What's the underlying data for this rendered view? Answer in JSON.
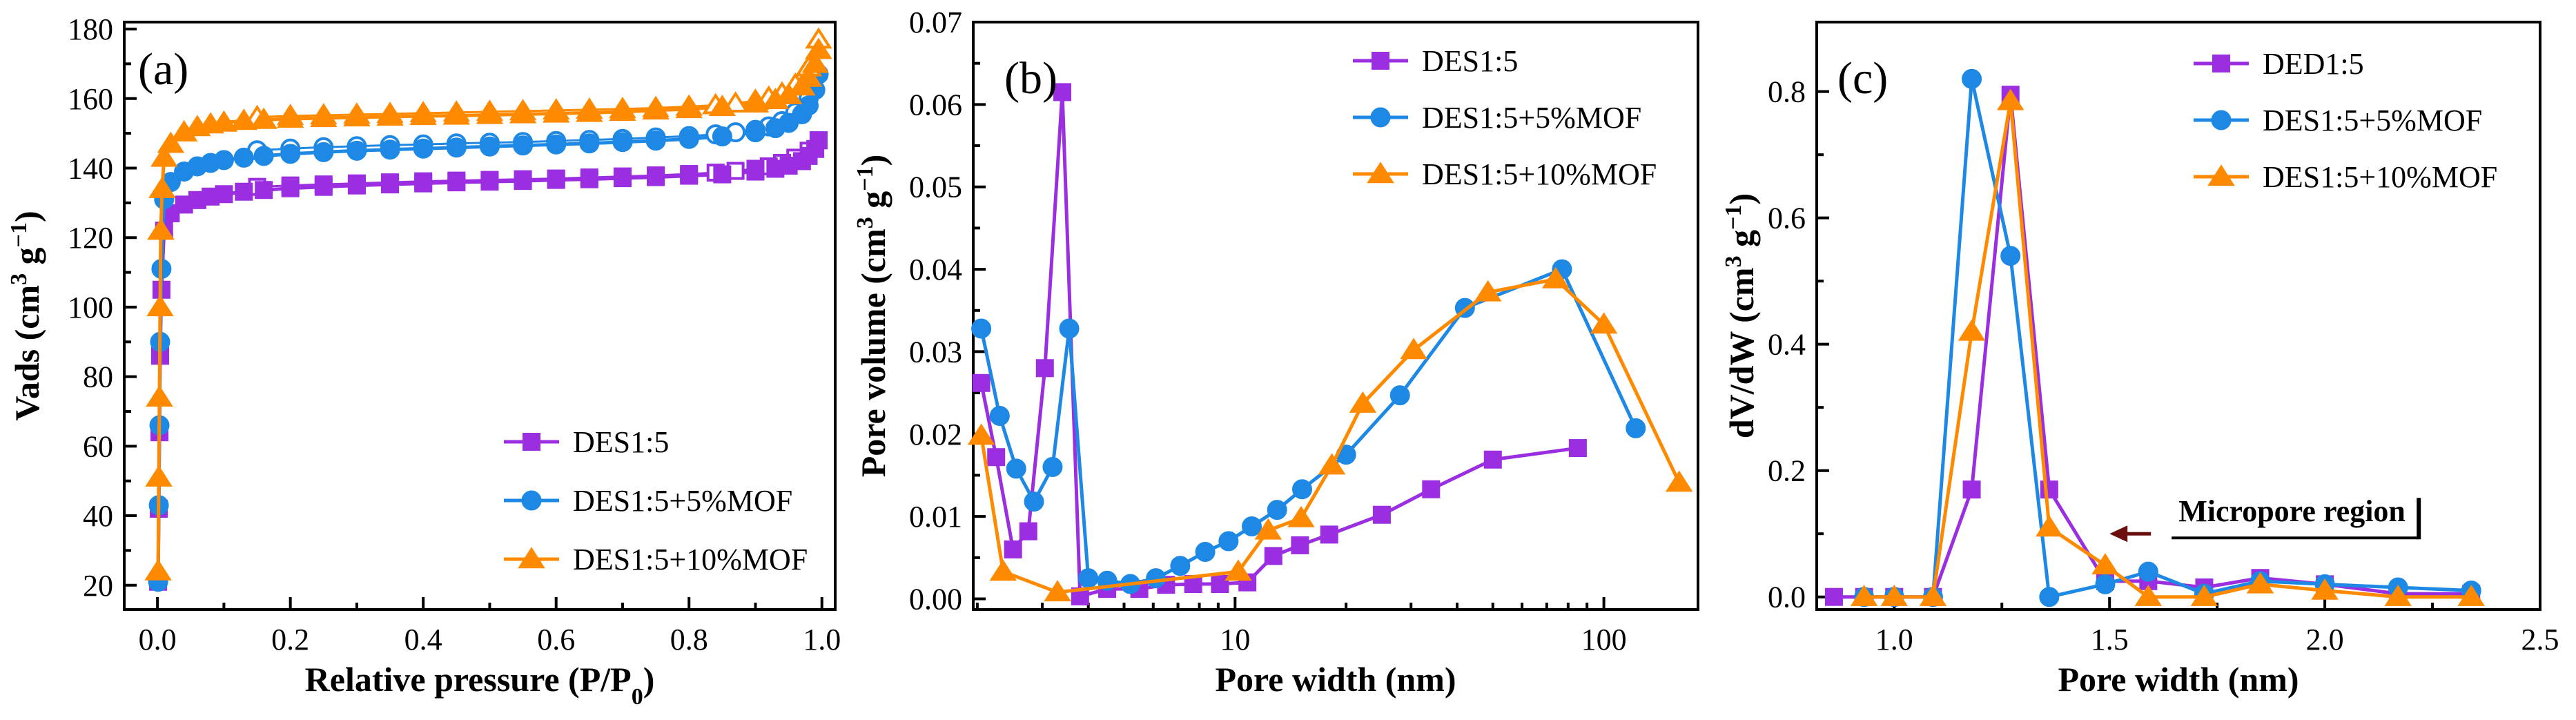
{
  "colors": {
    "purple": "#9a2ee0",
    "blue": "#1e88e5",
    "orange": "#ff8a00"
  },
  "chart_data": [
    {
      "type": "scatter",
      "panel_label": "(a)",
      "xlabel": "Relative pressure (P/P",
      "xlabel_sub": "0",
      "xlabel_end": ")",
      "ylabel": "Vads (cm",
      "ylabel_sup": "3",
      "ylabel_mid": " g",
      "ylabel_sup2": "−1",
      "ylabel_end": ")",
      "xlim": [
        -0.05,
        1.02
      ],
      "ylim": [
        13,
        182
      ],
      "x_ticks": [
        0.0,
        0.2,
        0.4,
        0.6,
        0.8,
        1.0
      ],
      "x_tick_labels": [
        "0.0",
        "0.2",
        "0.4",
        "0.6",
        "0.8",
        "1.0"
      ],
      "y_ticks": [
        20,
        40,
        60,
        80,
        100,
        120,
        140,
        160,
        180
      ],
      "y_tick_labels": [
        "20",
        "40",
        "60",
        "80",
        "100",
        "120",
        "140",
        "160",
        "180"
      ],
      "legend_position": "bottom-right",
      "series": [
        {
          "name": "DES1:5",
          "color": "purple",
          "marker": "square",
          "adsorption": {
            "x": [
              0.001,
              0.002,
              0.003,
              0.004,
              0.006,
              0.01,
              0.02,
              0.04,
              0.06,
              0.08,
              0.1,
              0.13,
              0.16,
              0.2,
              0.25,
              0.3,
              0.35,
              0.4,
              0.45,
              0.5,
              0.55,
              0.6,
              0.65,
              0.7,
              0.75,
              0.8,
              0.85,
              0.9,
              0.93,
              0.95,
              0.97,
              0.98,
              0.99,
              0.995
            ],
            "y": [
              21,
              42,
              64,
              86,
              105,
              122,
              127,
              129.5,
              130.8,
              131.8,
              132.5,
              133.2,
              133.7,
              134.2,
              134.6,
              135,
              135.3,
              135.6,
              135.9,
              136.1,
              136.3,
              136.6,
              136.8,
              137.1,
              137.4,
              137.8,
              138.2,
              139,
              139.8,
              140.7,
              142,
              143.5,
              145.5,
              148
            ]
          },
          "desorption": {
            "x": [
              0.995,
              0.98,
              0.96,
              0.94,
              0.92,
              0.9,
              0.87,
              0.84,
              0.8,
              0.75,
              0.7,
              0.65,
              0.6,
              0.55,
              0.5,
              0.45,
              0.4,
              0.35,
              0.3,
              0.25,
              0.2,
              0.15
            ],
            "y": [
              148,
              145,
              143,
              141.5,
              140.5,
              139.8,
              139.2,
              138.7,
              138.3,
              137.9,
              137.6,
              137.3,
              137,
              136.8,
              136.6,
              136.4,
              136.2,
              135.9,
              135.6,
              135.3,
              135,
              134.6
            ]
          }
        },
        {
          "name": "DES1:5+5%MOF",
          "color": "blue",
          "marker": "circle",
          "adsorption": {
            "x": [
              0.001,
              0.002,
              0.003,
              0.004,
              0.006,
              0.01,
              0.02,
              0.04,
              0.06,
              0.08,
              0.1,
              0.13,
              0.16,
              0.2,
              0.25,
              0.3,
              0.35,
              0.4,
              0.45,
              0.5,
              0.55,
              0.6,
              0.65,
              0.7,
              0.75,
              0.8,
              0.85,
              0.9,
              0.93,
              0.95,
              0.97,
              0.98,
              0.99,
              0.995
            ],
            "y": [
              21,
              43,
              66,
              90,
              111,
              131,
              136,
              139,
              140.5,
              141.5,
              142.3,
              143,
              143.5,
              144.1,
              144.6,
              145,
              145.3,
              145.6,
              145.9,
              146.2,
              146.5,
              146.8,
              147.1,
              147.5,
              147.9,
              148.4,
              149.1,
              150.3,
              151.5,
              153,
              155.5,
              158,
              162.5,
              167
            ]
          },
          "desorption": {
            "x": [
              0.995,
              0.98,
              0.96,
              0.94,
              0.92,
              0.9,
              0.87,
              0.84,
              0.8,
              0.75,
              0.7,
              0.65,
              0.6,
              0.55,
              0.5,
              0.45,
              0.4,
              0.35,
              0.3,
              0.25,
              0.2,
              0.15
            ],
            "y": [
              167,
              160,
              156,
              153.5,
              152,
              151,
              150.3,
              149.7,
              149.2,
              148.8,
              148.4,
              148.1,
              147.8,
              147.5,
              147.3,
              147.1,
              146.8,
              146.6,
              146.3,
              146,
              145.6,
              145.1
            ]
          }
        },
        {
          "name": "DES1:5+10%MOF",
          "color": "orange",
          "marker": "triangle",
          "adsorption": {
            "x": [
              0.001,
              0.002,
              0.003,
              0.004,
              0.005,
              0.007,
              0.01,
              0.02,
              0.04,
              0.06,
              0.08,
              0.1,
              0.13,
              0.16,
              0.2,
              0.25,
              0.3,
              0.35,
              0.4,
              0.45,
              0.5,
              0.55,
              0.6,
              0.65,
              0.7,
              0.75,
              0.8,
              0.85,
              0.9,
              0.93,
              0.95,
              0.97,
              0.98,
              0.99,
              0.995
            ],
            "y": [
              24,
              51,
              74,
              100,
              122,
              134,
              143,
              147,
              150.3,
              151.8,
              152.6,
              153.1,
              153.6,
              153.9,
              154.2,
              154.4,
              154.6,
              154.8,
              155,
              155.1,
              155.3,
              155.5,
              155.7,
              155.9,
              156.2,
              156.6,
              157,
              157.6,
              158.6,
              159.6,
              161,
              163.5,
              166,
              170,
              174
            ]
          },
          "desorption": {
            "x": [
              0.995,
              0.98,
              0.96,
              0.94,
              0.92,
              0.9,
              0.87,
              0.84,
              0.8,
              0.75,
              0.7,
              0.65,
              0.6,
              0.55,
              0.5,
              0.45,
              0.4,
              0.35,
              0.3,
              0.25,
              0.2,
              0.15
            ],
            "y": [
              177,
              169,
              164,
              161.5,
              160.3,
              159.4,
              158.6,
              158.1,
              157.7,
              157.3,
              157,
              156.8,
              156.6,
              156.4,
              156.2,
              156,
              155.8,
              155.6,
              155.4,
              155.2,
              155,
              154.7
            ]
          }
        }
      ]
    },
    {
      "type": "line",
      "panel_label": "(b)",
      "xscale": "log",
      "xlabel": "Pore width (nm)",
      "ylabel": "Pore volume (cm",
      "ylabel_sup": "3",
      "ylabel_mid": " g",
      "ylabel_sup2": "−1",
      "ylabel_end": ")",
      "xlim": [
        1.95,
        180
      ],
      "ylim": [
        -0.0013,
        0.07
      ],
      "x_ticks": [
        10,
        100
      ],
      "x_tick_labels": [
        "10",
        "100"
      ],
      "y_ticks": [
        0.0,
        0.01,
        0.02,
        0.03,
        0.04,
        0.05,
        0.06,
        0.07
      ],
      "y_tick_labels": [
        "0.00",
        "0.01",
        "0.02",
        "0.03",
        "0.04",
        "0.05",
        "0.06",
        "0.07"
      ],
      "legend_position": "top-right",
      "series": [
        {
          "name": "DES1:5",
          "color": "purple",
          "marker": "square",
          "x": [
            2.05,
            2.25,
            2.5,
            2.75,
            3.05,
            3.4,
            3.8,
            4.5,
            5.5,
            6.5,
            7.7,
            9.1,
            10.8,
            12.7,
            15,
            18,
            25,
            34,
            50,
            85
          ],
          "y": [
            0.0262,
            0.0172,
            0.006,
            0.0082,
            0.028,
            0.0615,
            0.0003,
            0.0012,
            0.0012,
            0.0017,
            0.0018,
            0.0018,
            0.002,
            0.0052,
            0.0065,
            0.0078,
            0.0102,
            0.0133,
            0.0169,
            0.0183
          ]
        },
        {
          "name": "DES1:5+5%MOF",
          "color": "blue",
          "marker": "circle",
          "x": [
            2.05,
            2.3,
            2.55,
            2.85,
            3.2,
            3.55,
            4.0,
            4.5,
            5.2,
            6.1,
            7.1,
            8.3,
            9.6,
            11.1,
            13,
            15.2,
            20,
            28,
            42,
            77,
            122
          ],
          "y": [
            0.0328,
            0.0222,
            0.0158,
            0.0118,
            0.016,
            0.0328,
            0.0025,
            0.0022,
            0.0018,
            0.0025,
            0.004,
            0.0057,
            0.007,
            0.0088,
            0.0108,
            0.0133,
            0.0175,
            0.0247,
            0.0353,
            0.04,
            0.0207
          ]
        },
        {
          "name": "DES1:5+10%MOF",
          "color": "orange",
          "marker": "triangle",
          "x": [
            2.05,
            2.35,
            3.3,
            10.2,
            12.3,
            15.1,
            18.3,
            22.2,
            30.5,
            48.5,
            74,
            100,
            160
          ],
          "y": [
            0.0198,
            0.0033,
            0.0008,
            0.0033,
            0.0083,
            0.0098,
            0.0162,
            0.0237,
            0.0302,
            0.0372,
            0.0388,
            0.0333,
            0.0141
          ]
        }
      ]
    },
    {
      "type": "line",
      "panel_label": "(c)",
      "xlabel": "Pore width (nm)",
      "ylabel": "dV/dW (cm",
      "ylabel_sup": "3",
      "ylabel_mid": " g",
      "ylabel_sup2": "−1",
      "ylabel_end": ")",
      "xlim": [
        0.82,
        2.5
      ],
      "ylim": [
        -0.02,
        0.91
      ],
      "x_ticks": [
        1.0,
        1.5,
        2.0,
        2.5
      ],
      "x_tick_labels": [
        "1.0",
        "1.5",
        "2.0",
        "2.5"
      ],
      "y_ticks": [
        0.0,
        0.2,
        0.4,
        0.6,
        0.8
      ],
      "y_tick_labels": [
        "0.0",
        "0.2",
        "0.4",
        "0.6",
        "0.8"
      ],
      "legend_position": "top-right",
      "annotation": {
        "text": "Micropore region",
        "arrow_x": 1.5,
        "arrow_y": 0.1
      },
      "series": [
        {
          "name": "DED1:5",
          "color": "purple",
          "marker": "square",
          "x": [
            0.86,
            0.93,
            1.0,
            1.09,
            1.18,
            1.27,
            1.36,
            1.49,
            1.59,
            1.72,
            1.85,
            2.0,
            2.17,
            2.34
          ],
          "y": [
            0.0,
            0.0,
            0.0,
            0.0,
            0.17,
            0.795,
            0.17,
            0.025,
            0.025,
            0.015,
            0.03,
            0.02,
            0.005,
            0.005
          ]
        },
        {
          "name": "DES1:5+5%MOF",
          "color": "blue",
          "marker": "circle",
          "x": [
            0.93,
            1.0,
            1.09,
            1.18,
            1.27,
            1.36,
            1.49,
            1.59,
            1.72,
            1.85,
            2.0,
            2.17,
            2.34
          ],
          "y": [
            0.0,
            0.0,
            0.0,
            0.82,
            0.54,
            0.0,
            0.02,
            0.04,
            0.005,
            0.025,
            0.02,
            0.015,
            0.01
          ]
        },
        {
          "name": "DES1:5+10%MOF",
          "color": "orange",
          "marker": "triangle",
          "x": [
            0.93,
            1.0,
            1.09,
            1.18,
            1.27,
            1.36,
            1.49,
            1.59,
            1.72,
            1.85,
            2.0,
            2.17,
            2.34
          ],
          "y": [
            0.0,
            0.0,
            0.0,
            0.42,
            0.785,
            0.11,
            0.05,
            0.0,
            0.0,
            0.02,
            0.01,
            0.0,
            0.0
          ]
        }
      ]
    }
  ]
}
